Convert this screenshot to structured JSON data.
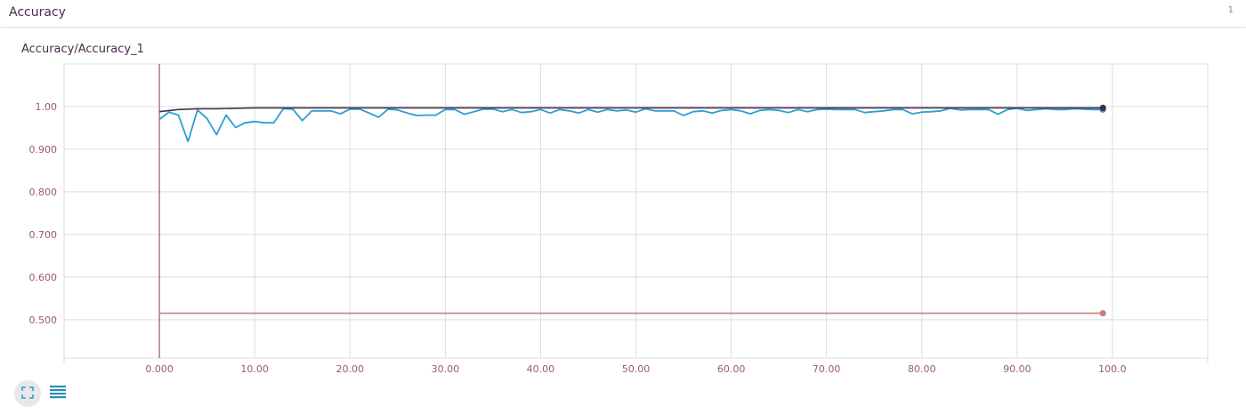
{
  "header": {
    "title": "Accuracy",
    "count": "1"
  },
  "chart_title": "Accuracy/Accuracy_1",
  "colors": {
    "series_a": "#c97f7f",
    "series_b": "#2a9fd0",
    "series_c": "#4a2b4e",
    "axis_line": "#9a5a6a",
    "grid": "#dddddd"
  },
  "icons": {
    "expand": "expand-icon",
    "data_table": "list-icon"
  },
  "chart_data": {
    "type": "line",
    "title": "Accuracy/Accuracy_1",
    "xlabel": "",
    "ylabel": "",
    "xlim": [
      -10,
      110
    ],
    "ylim": [
      0.41,
      1.1
    ],
    "x_ticks": [
      "0.000",
      "10.00",
      "20.00",
      "30.00",
      "40.00",
      "50.00",
      "60.00",
      "70.00",
      "80.00",
      "90.00",
      "100.0"
    ],
    "y_ticks": [
      "0.500",
      "0.600",
      "0.700",
      "0.800",
      "0.900",
      "1.00"
    ],
    "grid": true,
    "series": [
      {
        "color": "#c97f7f",
        "x": [
          0,
          99
        ],
        "values": [
          0.515,
          0.515
        ]
      },
      {
        "color": "#2a9fd0",
        "x": [
          0,
          1,
          2,
          3,
          4,
          5,
          6,
          7,
          8,
          9,
          10,
          11,
          12,
          13,
          14,
          15,
          16,
          17,
          18,
          19,
          20,
          21,
          22,
          23,
          24,
          25,
          26,
          27,
          28,
          29,
          30,
          31,
          32,
          33,
          34,
          35,
          36,
          37,
          38,
          39,
          40,
          41,
          42,
          43,
          44,
          45,
          46,
          47,
          48,
          49,
          50,
          51,
          52,
          53,
          54,
          55,
          56,
          57,
          58,
          59,
          60,
          61,
          62,
          63,
          64,
          65,
          66,
          67,
          68,
          69,
          70,
          71,
          72,
          73,
          74,
          75,
          76,
          77,
          78,
          79,
          80,
          81,
          82,
          83,
          84,
          85,
          86,
          87,
          88,
          89,
          90,
          91,
          92,
          93,
          94,
          95,
          96,
          97,
          98,
          99
        ],
        "values": [
          0.97,
          0.987,
          0.98,
          0.918,
          0.992,
          0.972,
          0.934,
          0.98,
          0.951,
          0.962,
          0.965,
          0.962,
          0.962,
          0.995,
          0.994,
          0.967,
          0.99,
          0.99,
          0.99,
          0.983,
          0.994,
          0.994,
          0.985,
          0.975,
          0.994,
          0.992,
          0.985,
          0.979,
          0.98,
          0.98,
          0.993,
          0.993,
          0.982,
          0.988,
          0.994,
          0.994,
          0.988,
          0.993,
          0.986,
          0.988,
          0.993,
          0.985,
          0.993,
          0.99,
          0.985,
          0.993,
          0.987,
          0.993,
          0.99,
          0.992,
          0.987,
          0.995,
          0.99,
          0.99,
          0.99,
          0.979,
          0.988,
          0.99,
          0.985,
          0.991,
          0.993,
          0.99,
          0.983,
          0.991,
          0.993,
          0.991,
          0.986,
          0.993,
          0.988,
          0.993,
          0.994,
          0.993,
          0.993,
          0.993,
          0.986,
          0.988,
          0.99,
          0.993,
          0.993,
          0.983,
          0.987,
          0.988,
          0.99,
          0.996,
          0.992,
          0.993,
          0.993,
          0.993,
          0.982,
          0.993,
          0.996,
          0.991,
          0.993,
          0.995,
          0.993,
          0.993,
          0.995,
          0.994,
          0.993,
          0.993
        ]
      },
      {
        "color": "#4a2b4e",
        "x": [
          0,
          2,
          4,
          6,
          8,
          10,
          15,
          20,
          30,
          40,
          50,
          60,
          70,
          80,
          90,
          99
        ],
        "values": [
          0.988,
          0.993,
          0.995,
          0.995,
          0.996,
          0.997,
          0.997,
          0.997,
          0.997,
          0.997,
          0.997,
          0.997,
          0.997,
          0.997,
          0.997,
          0.997
        ]
      }
    ]
  }
}
